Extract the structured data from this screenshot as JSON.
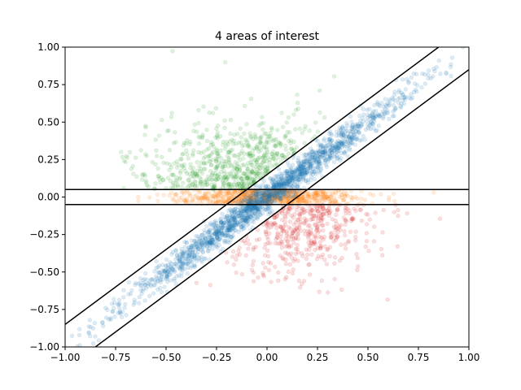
{
  "chart_data": {
    "type": "scatter",
    "title": "4 areas of interest",
    "xlabel": "",
    "ylabel": "",
    "xlim": [
      -1.0,
      1.0
    ],
    "ylim": [
      -1.0,
      1.0
    ],
    "grid": false,
    "x_ticks": [
      "−1.00",
      "−0.75",
      "−0.50",
      "−0.25",
      "0.00",
      "0.25",
      "0.50",
      "0.75",
      "1.00"
    ],
    "y_ticks": [
      "−1.00",
      "−0.75",
      "−0.50",
      "−0.25",
      "0.00",
      "0.25",
      "0.50",
      "0.75",
      "1.00"
    ],
    "x_tick_values": [
      -1.0,
      -0.75,
      -0.5,
      -0.25,
      0.0,
      0.25,
      0.5,
      0.75,
      1.0
    ],
    "y_tick_values": [
      -1.0,
      -0.75,
      -0.5,
      -0.25,
      0.0,
      0.25,
      0.5,
      0.75,
      1.0
    ],
    "point_alpha": 0.15,
    "series": [
      {
        "color": "#1f77b4",
        "region": "diagonal band |y - x| < 0.15",
        "count": 1800
      },
      {
        "color": "#ff7f0e",
        "region": "horizontal band |y| < 0.05",
        "count": 700
      },
      {
        "color": "#2ca02c",
        "region": "y > 0.05 above diagonal band",
        "count": 650
      },
      {
        "color": "#d62728",
        "region": "y < -0.05 below diagonal band",
        "count": 450
      }
    ],
    "boundary_lines": [
      {
        "color": "#000000",
        "points": [
          [
            -1.0,
            -0.85
          ],
          [
            1.0,
            1.15
          ]
        ]
      },
      {
        "color": "#000000",
        "points": [
          [
            -1.0,
            -1.15
          ],
          [
            1.0,
            0.85
          ]
        ]
      },
      {
        "color": "#000000",
        "points": [
          [
            -1.0,
            0.05
          ],
          [
            1.0,
            0.05
          ]
        ]
      },
      {
        "color": "#000000",
        "points": [
          [
            -1.0,
            -0.05
          ],
          [
            1.0,
            -0.05
          ]
        ]
      }
    ]
  }
}
